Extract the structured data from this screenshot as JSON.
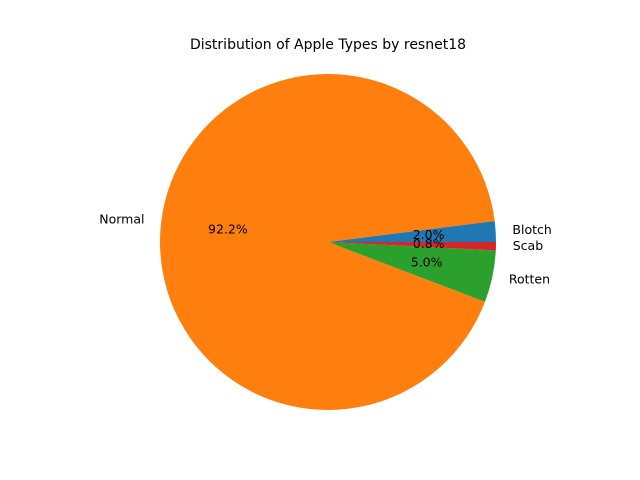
{
  "chart_data": {
    "type": "pie",
    "title": "Distribution of Apple Types by resnet18",
    "slices": [
      {
        "label": "Blotch",
        "value": 2.0,
        "pct_label": "2.0%",
        "color": "#1f77b4"
      },
      {
        "label": "Normal",
        "value": 92.2,
        "pct_label": "92.2%",
        "color": "#ff7f0e"
      },
      {
        "label": "Rotten",
        "value": 5.0,
        "pct_label": "5.0%",
        "color": "#2ca02c"
      },
      {
        "label": "Scab",
        "value": 0.8,
        "pct_label": "0.8%",
        "color": "#d62728"
      }
    ],
    "start_angle_deg": 0,
    "direction": "counterclockwise"
  }
}
